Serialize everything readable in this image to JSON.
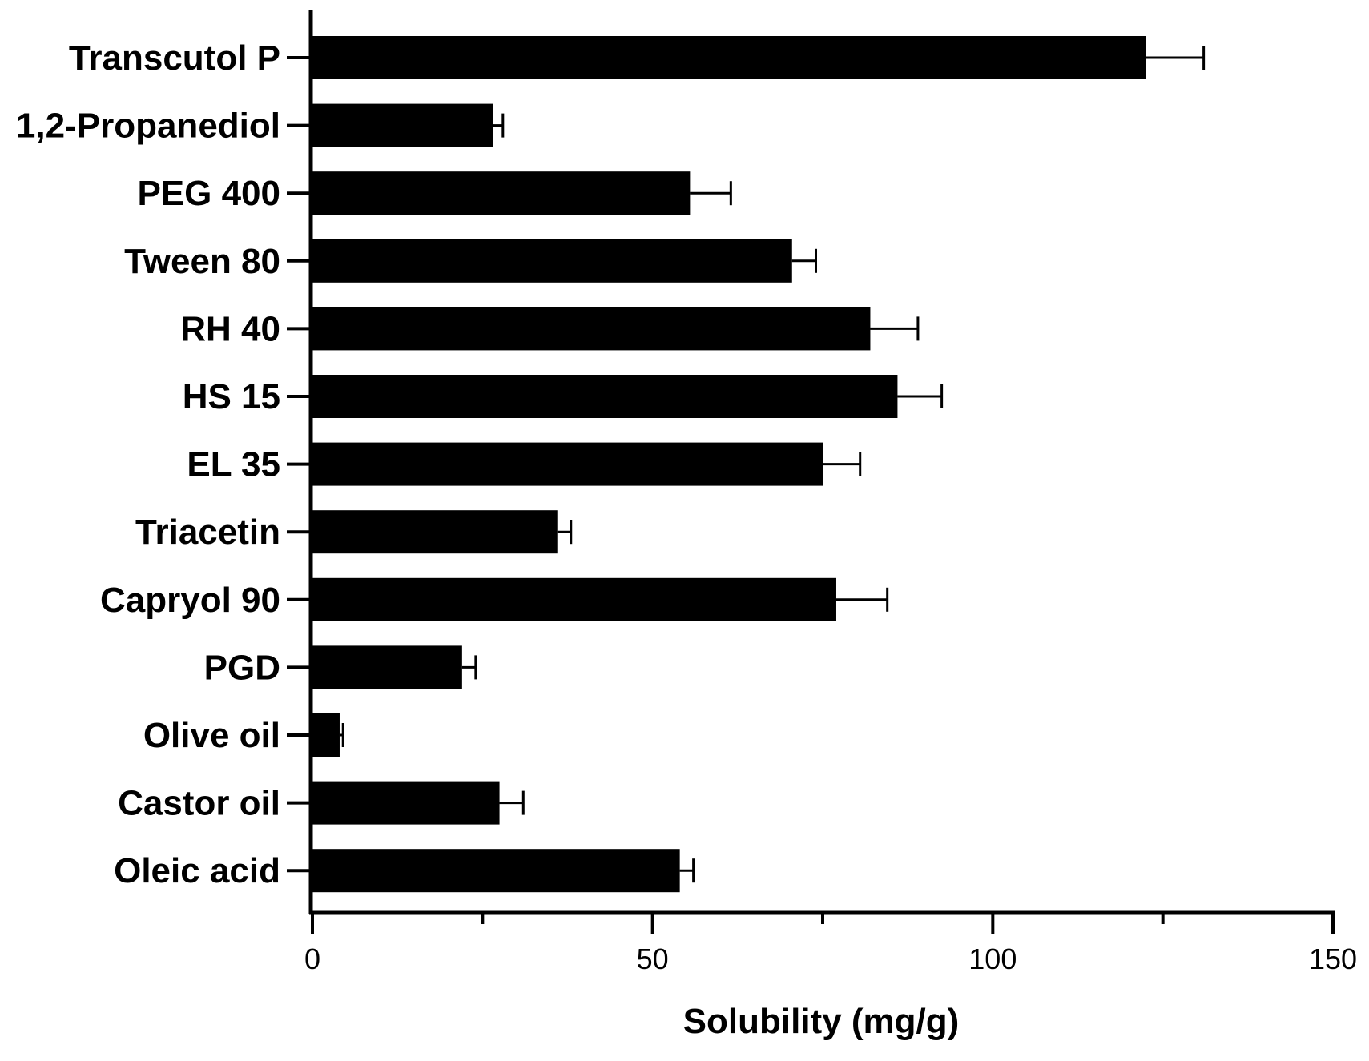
{
  "chart_data": {
    "type": "bar",
    "orientation": "horizontal",
    "title": "",
    "xlabel": "Solubility (mg/g)",
    "ylabel": "",
    "xlim": [
      0,
      150
    ],
    "x_ticks": [
      0,
      50,
      100,
      150
    ],
    "x_minor_ticks": [
      25,
      75,
      125
    ],
    "grid": false,
    "color": "#000000",
    "categories": [
      "Transcutol P",
      "1,2-Propanediol",
      "PEG 400",
      "Tween 80",
      "RH 40",
      "HS 15",
      "EL 35",
      "Triacetin",
      "Capryol 90",
      "PGD",
      "Olive oil",
      "Castor oil",
      "Oleic acid"
    ],
    "values": [
      122.5,
      26.5,
      55.5,
      70.5,
      82,
      86,
      75,
      36,
      77,
      22,
      4,
      27.5,
      54
    ],
    "errors": [
      8.5,
      1.5,
      6,
      3.5,
      7,
      6.5,
      5.5,
      2,
      7.5,
      2,
      0.5,
      3.5,
      2
    ]
  }
}
